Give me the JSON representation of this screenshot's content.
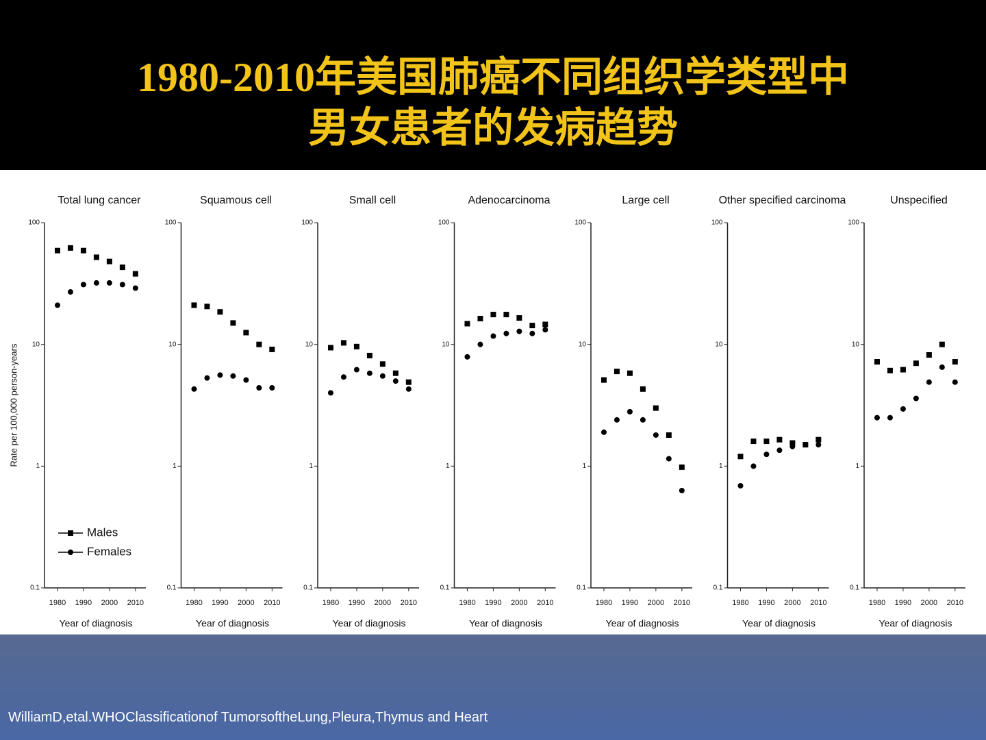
{
  "slide": {
    "title_lines": [
      "1980-2010年美国肺癌不同组织学类型中",
      "男女患者的发病趋势"
    ],
    "citation": "WilliamD,etal.WHOClassificationof TumorsoftheLung,Pleura,Thymus and Heart"
  },
  "chart_data": [
    {
      "type": "scatter",
      "title": "Total lung cancer",
      "xlabel": "Year of diagnosis",
      "ylabel": "Rate per 100,000 person-years",
      "legend": "lower-left",
      "log_y": true,
      "x": [
        1980,
        1985,
        1990,
        1995,
        2000,
        2005,
        2010
      ],
      "xlim": [
        1975,
        2014
      ],
      "xticks": [
        1980,
        1990,
        2000,
        2010
      ],
      "ylim": [
        0.1,
        100
      ],
      "yticks": [
        0.1,
        1,
        10,
        100
      ],
      "series": [
        {
          "name": "Males",
          "color": "#000000",
          "marker": "square",
          "values": [
            59,
            62,
            59,
            52,
            48,
            43,
            38
          ]
        },
        {
          "name": "Females",
          "color": "#000000",
          "marker": "circle",
          "values": [
            21,
            27,
            31,
            32,
            32,
            31,
            29
          ]
        }
      ]
    },
    {
      "type": "scatter",
      "title": "Squamous cell",
      "xlabel": "Year of diagnosis",
      "log_y": true,
      "x": [
        1980,
        1985,
        1990,
        1995,
        2000,
        2005,
        2010
      ],
      "xlim": [
        1975,
        2014
      ],
      "xticks": [
        1980,
        1990,
        2000,
        2010
      ],
      "ylim": [
        0.1,
        100
      ],
      "yticks": [
        0.1,
        1,
        10,
        100
      ],
      "series": [
        {
          "name": "Males",
          "color": "#000000",
          "marker": "square",
          "values": [
            21,
            20.5,
            18.5,
            15,
            12.5,
            10,
            9.1
          ]
        },
        {
          "name": "Females",
          "color": "#000000",
          "marker": "circle",
          "values": [
            4.3,
            5.3,
            5.6,
            5.5,
            5.1,
            4.4,
            4.4
          ]
        }
      ]
    },
    {
      "type": "scatter",
      "title": "Small cell",
      "xlabel": "Year of diagnosis",
      "log_y": true,
      "x": [
        1980,
        1985,
        1990,
        1995,
        2000,
        2005,
        2010
      ],
      "xlim": [
        1975,
        2014
      ],
      "xticks": [
        1980,
        1990,
        2000,
        2010
      ],
      "ylim": [
        0.1,
        100
      ],
      "yticks": [
        0.1,
        1,
        10,
        100
      ],
      "series": [
        {
          "name": "Males",
          "color": "#000000",
          "marker": "square",
          "values": [
            9.4,
            10.3,
            9.6,
            8.1,
            6.9,
            5.8,
            4.9
          ]
        },
        {
          "name": "Females",
          "color": "#000000",
          "marker": "circle",
          "values": [
            4.0,
            5.4,
            6.2,
            5.8,
            5.5,
            5.0,
            4.3
          ]
        }
      ]
    },
    {
      "type": "scatter",
      "title": "Adenocarcinoma",
      "xlabel": "Year of diagnosis",
      "log_y": true,
      "x": [
        1980,
        1985,
        1990,
        1995,
        2000,
        2005,
        2010
      ],
      "xlim": [
        1975,
        2014
      ],
      "xticks": [
        1980,
        1990,
        2000,
        2010
      ],
      "ylim": [
        0.1,
        100
      ],
      "yticks": [
        0.1,
        1,
        10,
        100
      ],
      "series": [
        {
          "name": "Males",
          "color": "#000000",
          "marker": "square",
          "values": [
            14.8,
            16.3,
            17.6,
            17.6,
            16.5,
            14.3,
            14.6
          ]
        },
        {
          "name": "Females",
          "color": "#000000",
          "marker": "circle",
          "values": [
            7.9,
            10,
            11.7,
            12.3,
            12.8,
            12.3,
            13.2
          ]
        }
      ]
    },
    {
      "type": "scatter",
      "title": "Large cell",
      "xlabel": "Year of diagnosis",
      "log_y": true,
      "x": [
        1980,
        1985,
        1990,
        1995,
        2000,
        2005,
        2010
      ],
      "xlim": [
        1975,
        2014
      ],
      "xticks": [
        1980,
        1990,
        2000,
        2010
      ],
      "ylim": [
        0.1,
        100
      ],
      "yticks": [
        0.1,
        1,
        10,
        100
      ],
      "series": [
        {
          "name": "Males",
          "color": "#000000",
          "marker": "square",
          "values": [
            5.1,
            6.0,
            5.8,
            4.3,
            3.0,
            1.8,
            0.98
          ]
        },
        {
          "name": "Females",
          "color": "#000000",
          "marker": "circle",
          "values": [
            1.9,
            2.4,
            2.8,
            2.4,
            1.8,
            1.15,
            0.63
          ]
        }
      ]
    },
    {
      "type": "scatter",
      "title": "Other specified carcinoma",
      "xlabel": "Year of diagnosis",
      "log_y": true,
      "x": [
        1980,
        1985,
        1990,
        1995,
        2000,
        2005,
        2010
      ],
      "xlim": [
        1975,
        2014
      ],
      "xticks": [
        1980,
        1990,
        2000,
        2010
      ],
      "ylim": [
        0.1,
        100
      ],
      "yticks": [
        0.1,
        1,
        10,
        100
      ],
      "series": [
        {
          "name": "Males",
          "color": "#000000",
          "marker": "square",
          "values": [
            1.2,
            1.6,
            1.6,
            1.65,
            1.55,
            1.5,
            1.65
          ]
        },
        {
          "name": "Females",
          "color": "#000000",
          "marker": "circle",
          "values": [
            0.69,
            1.0,
            1.25,
            1.35,
            1.45,
            1.5,
            1.5
          ]
        }
      ]
    },
    {
      "type": "scatter",
      "title": "Unspecified",
      "xlabel": "Year of diagnosis",
      "log_y": true,
      "x": [
        1980,
        1985,
        1990,
        1995,
        2000,
        2005,
        2010
      ],
      "xlim": [
        1975,
        2014
      ],
      "xticks": [
        1980,
        1990,
        2000,
        2010
      ],
      "ylim": [
        0.1,
        100
      ],
      "yticks": [
        0.1,
        1,
        10,
        100
      ],
      "series": [
        {
          "name": "Males",
          "color": "#000000",
          "marker": "square",
          "values": [
            7.2,
            6.1,
            6.2,
            7.0,
            8.2,
            10,
            7.2
          ]
        },
        {
          "name": "Females",
          "color": "#000000",
          "marker": "circle",
          "values": [
            2.5,
            2.5,
            2.95,
            3.6,
            4.9,
            6.5,
            4.9
          ]
        }
      ]
    }
  ]
}
